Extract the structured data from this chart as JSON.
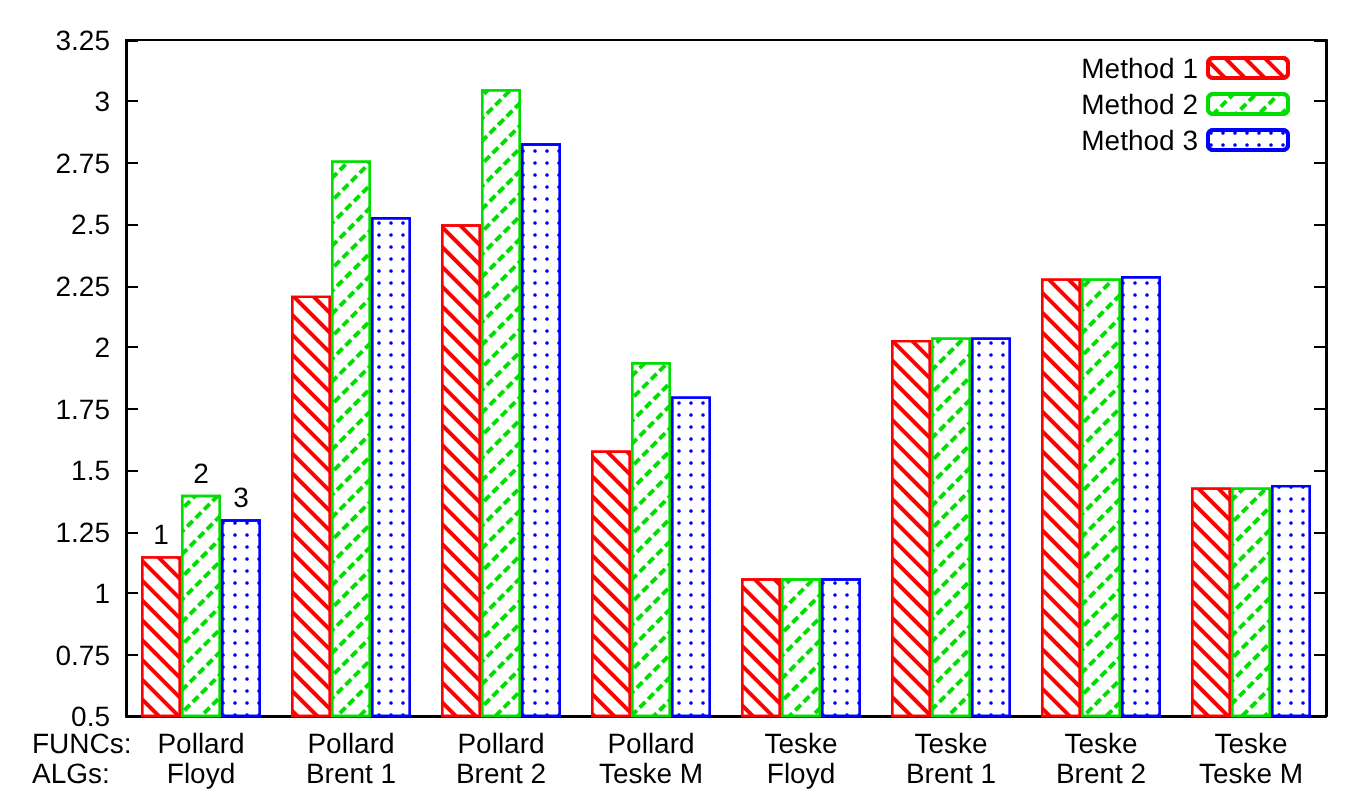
{
  "chart_data": {
    "type": "bar",
    "categories": [
      "Pollard\nFloyd",
      "Pollard\nBrent 1",
      "Pollard\nBrent 2",
      "Pollard\nTeske M",
      "Teske\nFloyd",
      "Teske\nBrent 1",
      "Teske\nBrent 2",
      "Teske\nTeske M"
    ],
    "series": [
      {
        "name": "Method 1",
        "color": "#ff0000",
        "values": [
          1.15,
          2.21,
          2.5,
          1.58,
          1.06,
          2.03,
          2.28,
          1.43
        ]
      },
      {
        "name": "Method 2",
        "color": "#00dd00",
        "values": [
          1.4,
          2.76,
          3.05,
          1.94,
          1.06,
          2.04,
          2.28,
          1.43
        ]
      },
      {
        "name": "Method 3",
        "color": "#0000ff",
        "values": [
          1.3,
          2.53,
          2.83,
          1.8,
          1.06,
          2.04,
          2.29,
          1.44
        ]
      }
    ],
    "ylim": [
      0.5,
      3.25
    ],
    "yticks": [
      0.5,
      0.75,
      1,
      1.25,
      1.5,
      1.75,
      2,
      2.25,
      2.5,
      2.75,
      3,
      3.25
    ],
    "annotations": [
      "FUNCs:\nALGs:",
      "1",
      "2",
      "3"
    ],
    "grid": false,
    "legend": "top right"
  }
}
